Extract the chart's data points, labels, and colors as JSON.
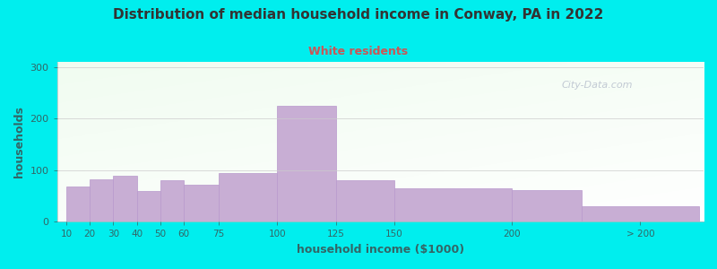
{
  "title": "Distribution of median household income in Conway, PA in 2022",
  "subtitle": "White residents",
  "xlabel": "household income ($1000)",
  "ylabel": "households",
  "background_color": "#00EEEE",
  "bar_color": "#c8aed4",
  "bar_edge_color": "#b898cc",
  "title_color": "#333333",
  "subtitle_color": "#cc5555",
  "axis_label_color": "#336666",
  "tick_color": "#336666",
  "watermark": "City-Data.com",
  "ylim": [
    0,
    310
  ],
  "yticks": [
    0,
    100,
    200,
    300
  ],
  "lefts": [
    10,
    20,
    30,
    40,
    50,
    60,
    75,
    100,
    125,
    150,
    200,
    230
  ],
  "widths": [
    10,
    10,
    10,
    10,
    10,
    15,
    25,
    25,
    25,
    50,
    30,
    50
  ],
  "values": [
    68,
    82,
    90,
    60,
    80,
    72,
    95,
    225,
    80,
    65,
    62,
    30
  ],
  "xtick_positions": [
    10,
    20,
    30,
    40,
    50,
    60,
    75,
    100,
    125,
    150,
    200,
    255
  ],
  "xtick_labels": [
    "10",
    "20",
    "30",
    "40",
    "50",
    "60",
    "75",
    "100",
    "125",
    "150",
    "200",
    "> 200"
  ],
  "xlim": [
    6,
    282
  ]
}
